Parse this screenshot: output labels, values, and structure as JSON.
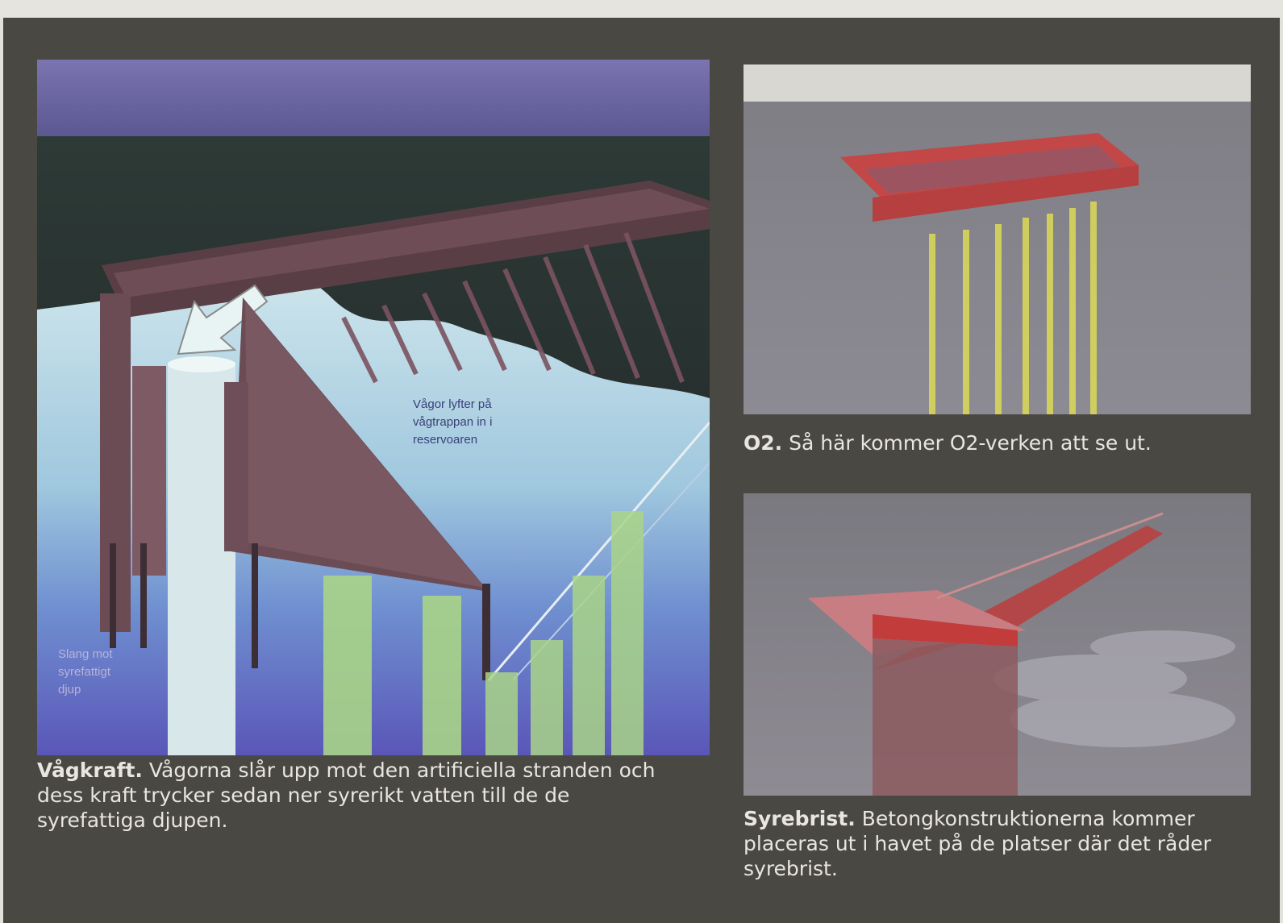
{
  "figures": {
    "wave": {
      "label_waves": [
        "Vågor lyfter på",
        "vågtrappan in i",
        "reservoaren"
      ],
      "label_pipe": [
        "Slang mot",
        "syrefattigt",
        "djup"
      ]
    }
  },
  "captions": {
    "wave": {
      "lead": "Vågkraft.",
      "text": " Vågorna slår upp mot den artificiella stranden och dess kraft trycker sedan ner syrerikt vatten till de de syrefattiga djupen."
    },
    "o2": {
      "lead": "O2.",
      "text": " Så här kommer O2-verken att se ut."
    },
    "syrebrist": {
      "lead": "Syrebrist.",
      "text": " Betongkonstruktionerna kommer placeras ut i havet på de platser där det råder syrebrist."
    }
  },
  "colors": {
    "page": "#4a4843",
    "caption_text": "#e9e6df",
    "structure_red": "#c94a4a",
    "pipe_yellow": "#d8d65a",
    "frame_brown": "#6b4c55"
  }
}
